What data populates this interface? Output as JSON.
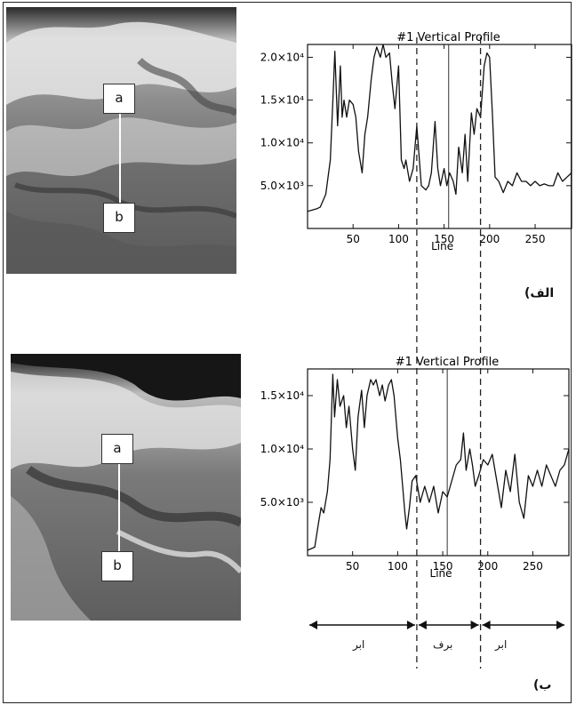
{
  "panels": {
    "top": {
      "caption": "الف)"
    },
    "bottom": {
      "caption": "ب)"
    }
  },
  "markers": {
    "a": "a",
    "b": "b"
  },
  "regions": [
    {
      "label": "ابر",
      "x_from": 0,
      "x_to": 120
    },
    {
      "label": "برف",
      "x_from": 120,
      "x_to": 190
    },
    {
      "label": "ابر",
      "x_from": 190,
      "x_to": 290
    }
  ],
  "dashed_lines_x": [
    120,
    190
  ],
  "chart_data": [
    {
      "type": "line",
      "title": "#1 Vertical Profile",
      "xlabel": "Line",
      "xlim": [
        0,
        290
      ],
      "ylim": [
        0,
        21500
      ],
      "xticks": [
        50,
        100,
        150,
        200,
        250
      ],
      "yticks": [
        {
          "value": 5000,
          "label": "5.0×10³"
        },
        {
          "value": 10000,
          "label": "1.0×10⁴"
        },
        {
          "value": 15000,
          "label": "1.5×10⁴"
        },
        {
          "value": 20000,
          "label": "2.0×10⁴"
        }
      ],
      "marker_line_x": 155,
      "series": [
        {
          "x": [
            0,
            10,
            14,
            20,
            25,
            28,
            30,
            33,
            36,
            38,
            40,
            43,
            46,
            50,
            53,
            56,
            60,
            63,
            66,
            70,
            73,
            76,
            80,
            83,
            86,
            90,
            93,
            96,
            100,
            103,
            106,
            108,
            112,
            116,
            120,
            125,
            130,
            133,
            136,
            140,
            143,
            146,
            150,
            153,
            156,
            160,
            163,
            166,
            170,
            173,
            176,
            180,
            183,
            186,
            190,
            194,
            197,
            200,
            203,
            206,
            210,
            215,
            220,
            225,
            230,
            235,
            240,
            245,
            250,
            255,
            260,
            265,
            270,
            275,
            280,
            285,
            290
          ],
          "y": [
            2000,
            2300,
            2500,
            4000,
            8000,
            15500,
            20700,
            12000,
            19000,
            13000,
            15000,
            13000,
            15000,
            14500,
            13000,
            9000,
            6500,
            11000,
            13000,
            17500,
            20000,
            21200,
            20000,
            21500,
            20000,
            20500,
            17000,
            14000,
            19000,
            8000,
            7000,
            8000,
            5500,
            7000,
            12000,
            5000,
            4500,
            5000,
            6500,
            12500,
            7000,
            5000,
            7000,
            5000,
            6500,
            5500,
            4000,
            9500,
            6500,
            11000,
            5500,
            13500,
            11000,
            14000,
            13000,
            19000,
            20500,
            20000,
            13500,
            6000,
            5500,
            4200,
            5500,
            5000,
            6500,
            5500,
            5500,
            5000,
            5500,
            5000,
            5200,
            5000,
            5000,
            6500,
            5500,
            6000,
            6500
          ]
        }
      ]
    },
    {
      "type": "line",
      "title": "#1 Vertical Profile",
      "xlabel": "Line",
      "xlim": [
        0,
        290
      ],
      "ylim": [
        0,
        17500
      ],
      "xticks": [
        50,
        100,
        150,
        200,
        250
      ],
      "yticks": [
        {
          "value": 5000,
          "label": "5.0×10³"
        },
        {
          "value": 10000,
          "label": "1.0×10⁴"
        },
        {
          "value": 15000,
          "label": "1.5×10⁴"
        }
      ],
      "marker_line_x": 155,
      "series": [
        {
          "x": [
            0,
            8,
            12,
            15,
            18,
            22,
            25,
            28,
            30,
            33,
            36,
            40,
            43,
            46,
            50,
            53,
            56,
            60,
            63,
            66,
            70,
            73,
            76,
            80,
            83,
            86,
            90,
            93,
            96,
            100,
            103,
            106,
            108,
            110,
            113,
            116,
            120,
            125,
            130,
            135,
            140,
            145,
            150,
            155,
            160,
            165,
            170,
            173,
            176,
            180,
            183,
            186,
            190,
            195,
            200,
            205,
            210,
            215,
            220,
            225,
            230,
            235,
            240,
            245,
            250,
            255,
            260,
            265,
            270,
            275,
            280,
            285,
            290
          ],
          "y": [
            500,
            800,
            3000,
            4500,
            4000,
            6000,
            9000,
            17000,
            13000,
            16500,
            14000,
            15000,
            12000,
            14000,
            10000,
            8000,
            13000,
            15500,
            12000,
            15000,
            16500,
            16000,
            16500,
            15000,
            16000,
            14500,
            16000,
            16500,
            15000,
            11000,
            9000,
            6000,
            4000,
            2500,
            4500,
            7000,
            7500,
            5000,
            6500,
            5000,
            6500,
            4000,
            6000,
            5500,
            7000,
            8500,
            9000,
            11500,
            8000,
            10000,
            8500,
            6500,
            7500,
            9000,
            8500,
            9500,
            7000,
            4500,
            8000,
            6000,
            9500,
            5000,
            3500,
            7500,
            6500,
            8000,
            6500,
            8500,
            7500,
            6500,
            8000,
            8500,
            10000
          ]
        }
      ]
    }
  ]
}
